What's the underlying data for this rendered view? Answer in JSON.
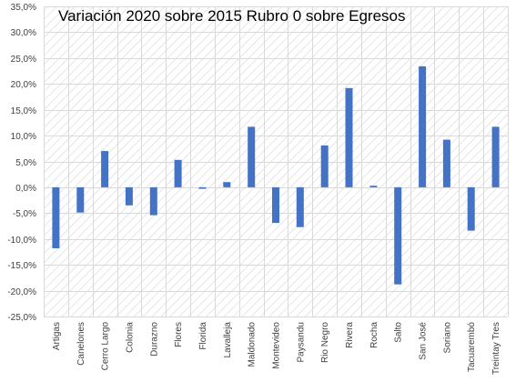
{
  "chart_data": {
    "type": "bar",
    "title": "Variación 2020 sobre 2015 Rubro 0 sobre Egresos",
    "xlabel": "",
    "ylabel": "",
    "ylim": [
      -25,
      35
    ],
    "ytick_step": 5,
    "ytick_labels": [
      "-25,0%",
      "-20,0%",
      "-15,0%",
      "-10,0%",
      "-5,0%",
      "0,0%",
      "5,0%",
      "10,0%",
      "15,0%",
      "20,0%",
      "25,0%",
      "30,0%",
      "35,0%"
    ],
    "grid": true,
    "categories": [
      "Artigas",
      "Canelones",
      "Cerro Largo",
      "Colonia",
      "Durazno",
      "Flores",
      "Florida",
      "Lavalleja",
      "Maldonado",
      "Montevideo",
      "Paysandu",
      "Rio Negro",
      "Rivera",
      "Rocha",
      "Salto",
      "San José",
      "Soriano",
      "Tacuarembó",
      "Treintay Tres"
    ],
    "values": [
      -11.8,
      -4.9,
      7.0,
      -3.5,
      -5.4,
      5.3,
      -0.3,
      1.0,
      11.7,
      -6.9,
      -7.7,
      8.1,
      19.2,
      0.3,
      -18.8,
      23.4,
      9.2,
      -8.4,
      11.7
    ],
    "bar_color": "#4472C4",
    "grid_color": "#d9d9d9",
    "hatch_color": "#d6d6d6"
  }
}
